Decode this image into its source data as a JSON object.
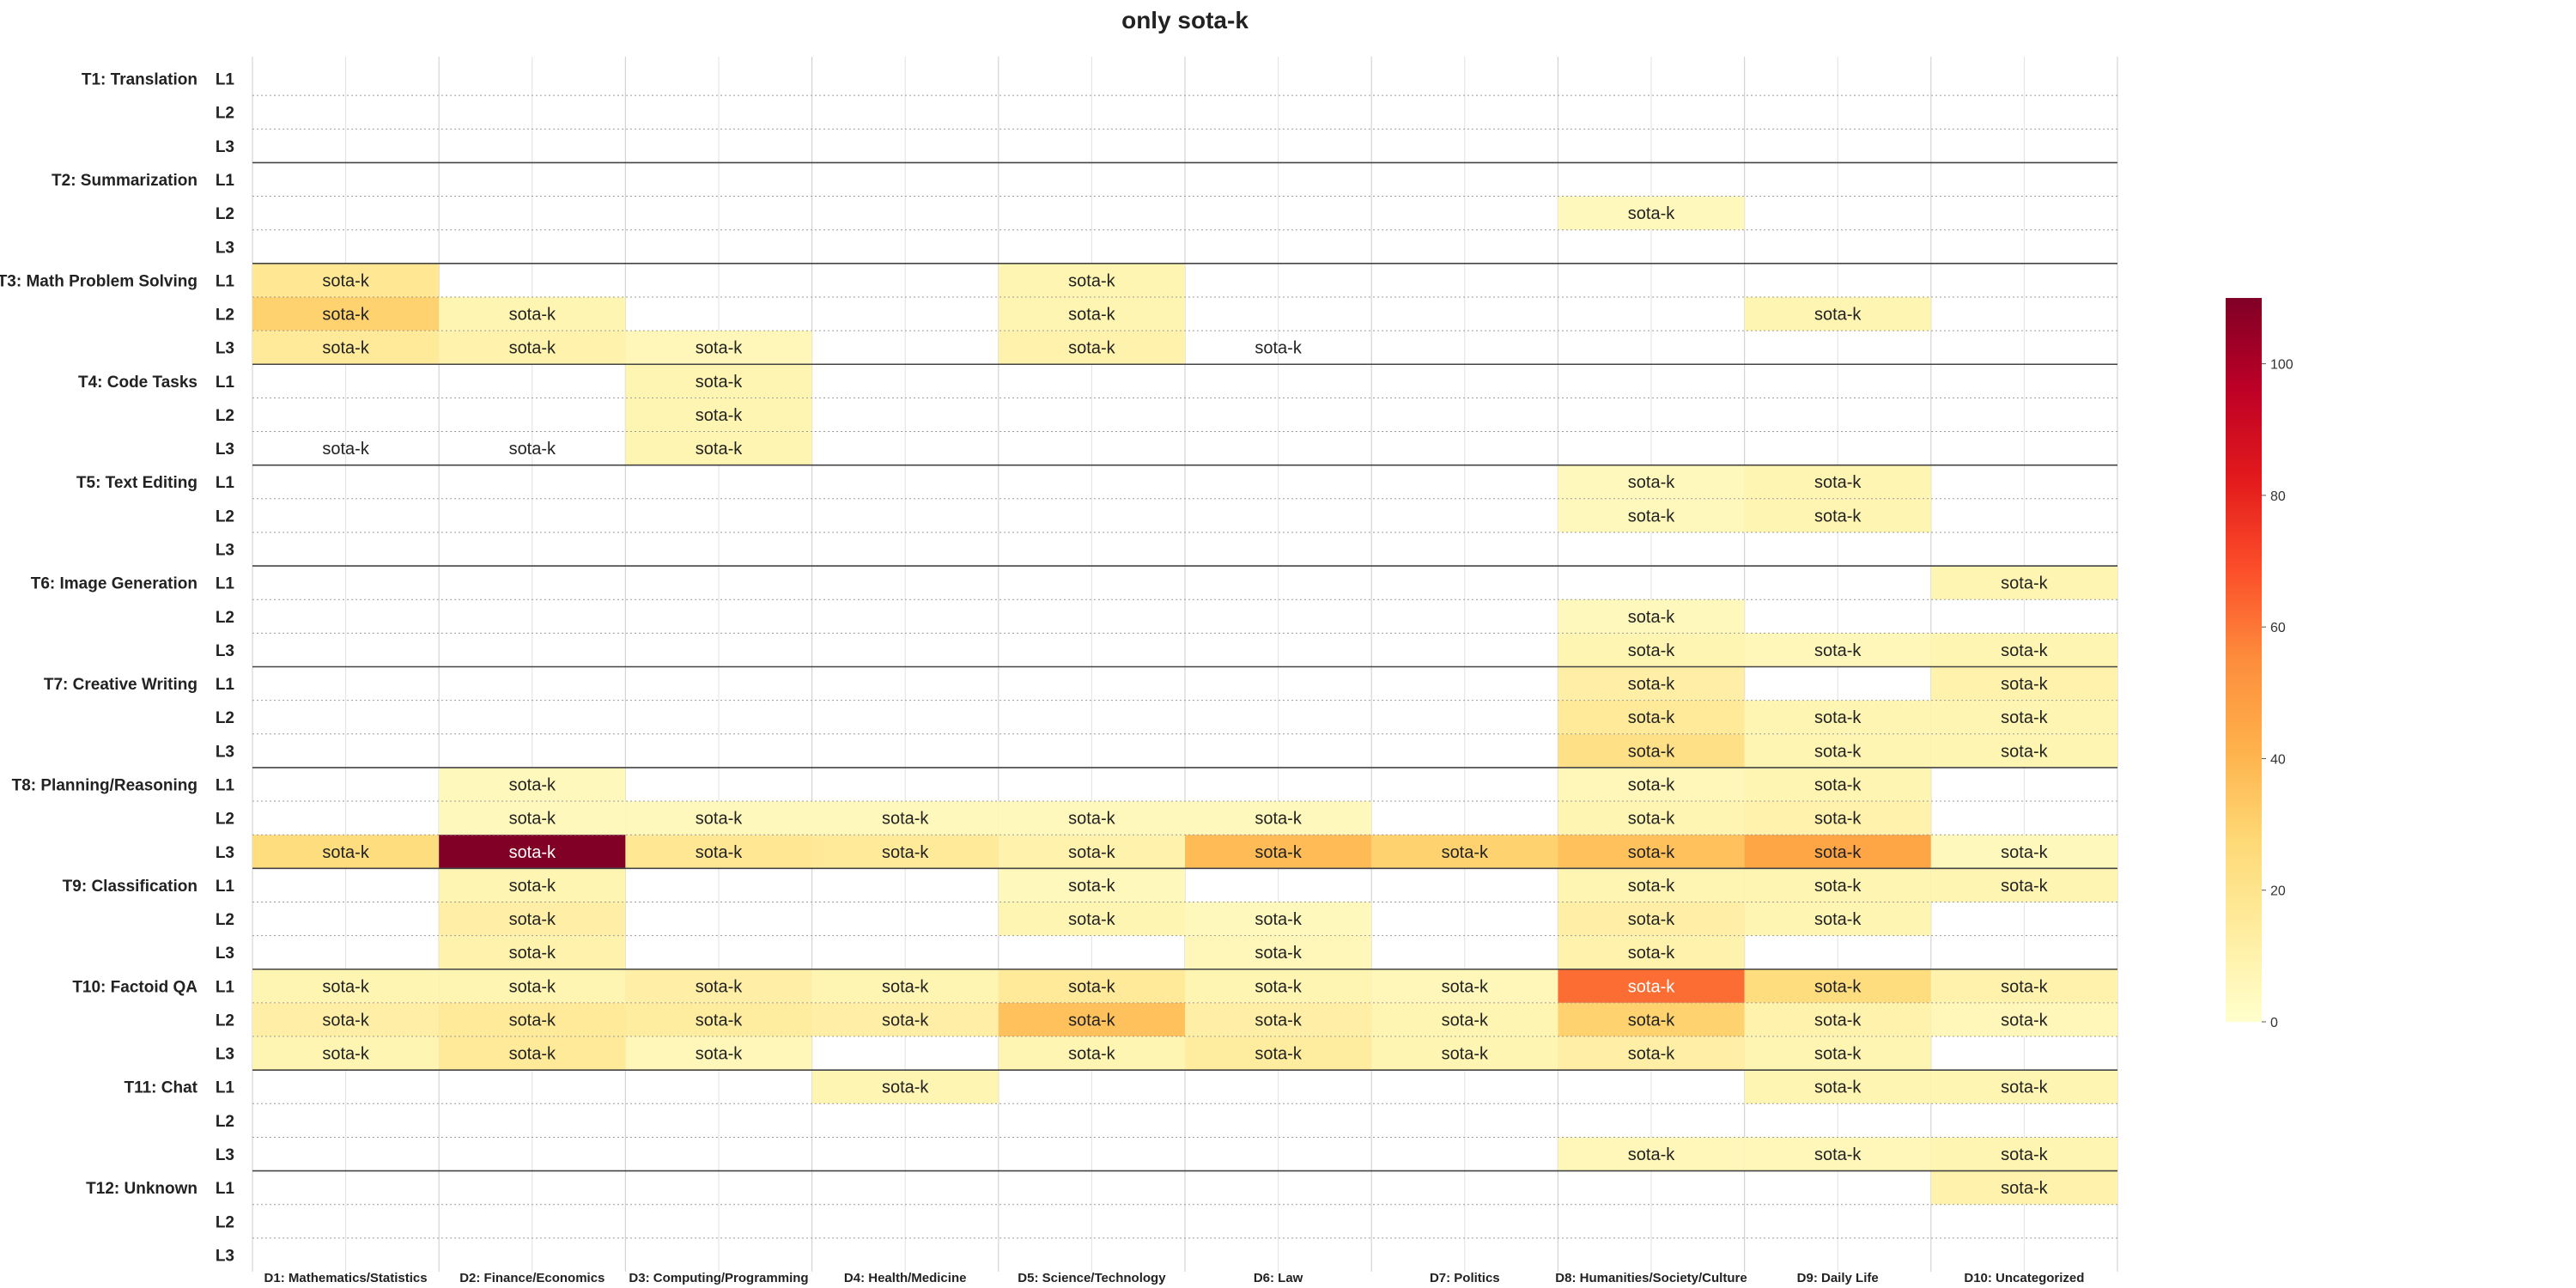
{
  "chart_data": {
    "type": "heatmap",
    "title": "only sota-k",
    "cell_label": "sota-k",
    "tasks": [
      "T1: Translation",
      "T2: Summarization",
      "T3: Math Problem Solving",
      "T4: Code Tasks",
      "T5: Text Editing",
      "T6: Image Generation",
      "T7: Creative Writing",
      "T8: Planning/Reasoning",
      "T9: Classification",
      "T10: Factoid QA",
      "T11: Chat",
      "T12: Unknown"
    ],
    "levels": [
      "L1",
      "L2",
      "L3"
    ],
    "domains": [
      "D1: Mathematics/Statistics",
      "D2: Finance/Economics",
      "D3: Computing/Programming",
      "D4: Health/Medicine",
      "D5: Science/Technology",
      "D6: Law",
      "D7: Politics",
      "D8: Humanities/Society/Culture",
      "D9: Daily Life",
      "D10: Uncategorized"
    ],
    "values": [
      [
        null,
        null,
        null,
        null,
        null,
        null,
        null,
        null,
        null,
        null
      ],
      [
        null,
        null,
        null,
        null,
        null,
        null,
        null,
        null,
        null,
        null
      ],
      [
        null,
        null,
        null,
        null,
        null,
        null,
        null,
        null,
        null,
        null
      ],
      [
        null,
        null,
        null,
        null,
        null,
        null,
        null,
        null,
        null,
        null
      ],
      [
        null,
        null,
        null,
        null,
        null,
        null,
        null,
        5,
        null,
        null
      ],
      [
        null,
        null,
        null,
        null,
        null,
        null,
        null,
        null,
        null,
        null
      ],
      [
        18,
        null,
        null,
        null,
        8,
        null,
        null,
        null,
        null,
        null
      ],
      [
        30,
        8,
        null,
        null,
        8,
        null,
        null,
        null,
        8,
        null
      ],
      [
        16,
        10,
        6,
        null,
        10,
        0,
        null,
        null,
        null,
        null
      ],
      [
        null,
        null,
        8,
        null,
        null,
        null,
        null,
        null,
        null,
        null
      ],
      [
        null,
        null,
        8,
        null,
        null,
        null,
        null,
        null,
        null,
        null
      ],
      [
        0,
        0,
        8,
        null,
        null,
        null,
        null,
        null,
        null,
        null
      ],
      [
        null,
        null,
        null,
        null,
        null,
        null,
        null,
        5,
        8,
        null
      ],
      [
        null,
        null,
        null,
        null,
        null,
        null,
        null,
        5,
        8,
        null
      ],
      [
        null,
        null,
        null,
        null,
        null,
        null,
        null,
        null,
        null,
        null
      ],
      [
        null,
        null,
        null,
        null,
        null,
        null,
        null,
        null,
        null,
        8
      ],
      [
        null,
        null,
        null,
        null,
        null,
        null,
        null,
        5,
        null,
        null
      ],
      [
        null,
        null,
        null,
        null,
        null,
        null,
        null,
        8,
        6,
        8
      ],
      [
        null,
        null,
        null,
        null,
        null,
        null,
        null,
        12,
        null,
        10
      ],
      [
        null,
        null,
        null,
        null,
        null,
        null,
        null,
        16,
        8,
        8
      ],
      [
        null,
        null,
        null,
        null,
        null,
        null,
        null,
        22,
        8,
        8
      ],
      [
        null,
        5,
        null,
        null,
        null,
        null,
        null,
        6,
        8,
        null
      ],
      [
        null,
        5,
        5,
        5,
        5,
        5,
        null,
        8,
        10,
        null
      ],
      [
        25,
        110,
        18,
        16,
        10,
        38,
        30,
        36,
        46,
        5
      ],
      [
        null,
        8,
        null,
        null,
        5,
        null,
        null,
        8,
        8,
        8
      ],
      [
        null,
        12,
        null,
        null,
        8,
        5,
        null,
        12,
        8,
        null
      ],
      [
        null,
        10,
        null,
        null,
        null,
        6,
        null,
        10,
        null,
        null
      ],
      [
        8,
        8,
        12,
        8,
        16,
        8,
        6,
        62,
        25,
        10
      ],
      [
        12,
        16,
        14,
        12,
        36,
        12,
        8,
        30,
        10,
        6
      ],
      [
        8,
        16,
        6,
        null,
        8,
        14,
        8,
        12,
        8,
        null
      ],
      [
        null,
        null,
        null,
        8,
        null,
        null,
        null,
        null,
        8,
        8
      ],
      [
        null,
        null,
        null,
        null,
        null,
        null,
        null,
        null,
        null,
        null
      ],
      [
        null,
        null,
        null,
        null,
        null,
        null,
        null,
        6,
        6,
        8
      ],
      [
        null,
        null,
        null,
        null,
        null,
        null,
        null,
        null,
        null,
        10
      ],
      [
        null,
        null,
        null,
        null,
        null,
        null,
        null,
        null,
        null,
        null
      ],
      [
        null,
        null,
        null,
        null,
        null,
        null,
        null,
        null,
        null,
        null
      ]
    ],
    "colorbar": {
      "min": 0,
      "max": 110,
      "ticks": [
        0,
        20,
        40,
        60,
        80,
        100
      ]
    },
    "colormap": [
      "#ffffcc",
      "#ffeda0",
      "#fed976",
      "#feb24c",
      "#fd8d3c",
      "#fc4e2a",
      "#e31a1c",
      "#bd0026",
      "#800026"
    ],
    "grid": true
  }
}
